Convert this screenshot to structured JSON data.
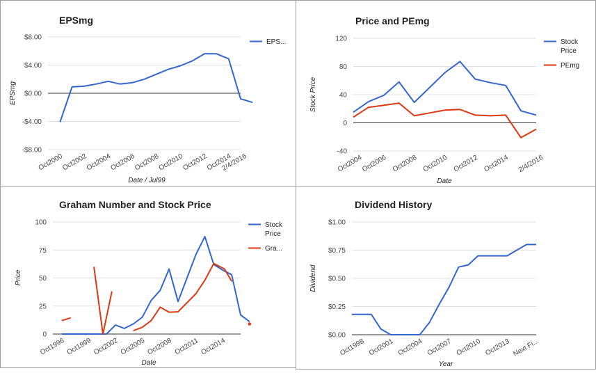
{
  "chart_data": [
    {
      "id": "eps",
      "type": "line",
      "title": "EPSmg",
      "xlabel": "Date / Jul99",
      "ylabel": "EPSmg",
      "ylim": [
        -8,
        8
      ],
      "yticks": [
        8,
        4,
        0,
        -4,
        -8
      ],
      "ytick_labels": [
        "$8.00",
        "$4.00",
        "$0.00",
        "-$4.00",
        "-$8.00"
      ],
      "xlim": [
        0,
        16
      ],
      "x_tick_labels": [
        {
          "x": 1,
          "label": "Oct2000"
        },
        {
          "x": 3,
          "label": "Oct2002"
        },
        {
          "x": 5,
          "label": "Oct2004"
        },
        {
          "x": 7,
          "label": "Oct2006"
        },
        {
          "x": 9,
          "label": "Oct2008"
        },
        {
          "x": 11,
          "label": "Oct2010"
        },
        {
          "x": 13,
          "label": "Oct2012"
        },
        {
          "x": 15,
          "label": "Oct2014"
        },
        {
          "x": 16.3,
          "label": "2/4/2016"
        }
      ],
      "legend_position": "right",
      "series": [
        {
          "name": "EPS...",
          "color": "#3366cc",
          "points": [
            [
              1,
              -4.1
            ],
            [
              2,
              0.9
            ],
            [
              3,
              1.0
            ],
            [
              4,
              1.3
            ],
            [
              5,
              1.7
            ],
            [
              6,
              1.3
            ],
            [
              7,
              1.5
            ],
            [
              8,
              2.0
            ],
            [
              9,
              2.7
            ],
            [
              10,
              3.4
            ],
            [
              11,
              3.9
            ],
            [
              12,
              4.6
            ],
            [
              13,
              5.6
            ],
            [
              14,
              5.6
            ],
            [
              15,
              4.9
            ],
            [
              16,
              -0.8
            ],
            [
              17,
              -1.3
            ]
          ]
        }
      ]
    },
    {
      "id": "pe",
      "type": "line",
      "title": "Price and PEmg",
      "xlabel": "Date",
      "ylabel": "Stock Price",
      "ylim": [
        -40,
        120
      ],
      "yticks": [
        120,
        80,
        40,
        0,
        -40
      ],
      "ytick_labels": [
        "120",
        "80",
        "40",
        "0",
        "-40"
      ],
      "xlim": [
        0,
        12
      ],
      "x_tick_labels": [
        {
          "x": 0.4,
          "label": "Oct2004"
        },
        {
          "x": 2,
          "label": "Oct2006"
        },
        {
          "x": 4,
          "label": "Oct2008"
        },
        {
          "x": 6,
          "label": "Oct2010"
        },
        {
          "x": 8,
          "label": "Oct2012"
        },
        {
          "x": 10,
          "label": "Oct2014"
        },
        {
          "x": 12.3,
          "label": "2/4/2016"
        }
      ],
      "legend_position": "right",
      "series": [
        {
          "name": "Stock Price",
          "color": "#3366cc",
          "points": [
            [
              0,
              15
            ],
            [
              1,
              30
            ],
            [
              2,
              39
            ],
            [
              3,
              58
            ],
            [
              4,
              29
            ],
            [
              5,
              50
            ],
            [
              6,
              71
            ],
            [
              7,
              87
            ],
            [
              8,
              62
            ],
            [
              9,
              57
            ],
            [
              10,
              53
            ],
            [
              11,
              17
            ],
            [
              12,
              11
            ]
          ]
        },
        {
          "name": "PEmg",
          "color": "#dc3912",
          "points": [
            [
              0,
              8
            ],
            [
              1,
              22
            ],
            [
              2,
              25
            ],
            [
              3,
              28
            ],
            [
              4,
              10
            ],
            [
              5,
              14
            ],
            [
              6,
              18
            ],
            [
              7,
              19
            ],
            [
              8,
              11
            ],
            [
              9,
              10
            ],
            [
              10,
              11
            ],
            [
              11,
              -21
            ],
            [
              12,
              -9
            ]
          ]
        }
      ]
    },
    {
      "id": "graham",
      "type": "line",
      "title": "Graham Number and Stock Price",
      "xlabel": "Date",
      "ylabel": "Price",
      "ylim": [
        0,
        100
      ],
      "yticks": [
        100,
        75,
        50,
        25,
        0
      ],
      "ytick_labels": [
        "100",
        "75",
        "50",
        "25",
        "0"
      ],
      "xlim": [
        0,
        21
      ],
      "x_tick_labels": [
        {
          "x": 1,
          "label": "Oct1996"
        },
        {
          "x": 4,
          "label": "Oct1999"
        },
        {
          "x": 7,
          "label": "Oct2002"
        },
        {
          "x": 10,
          "label": "Oct2005"
        },
        {
          "x": 13,
          "label": "Oct2008"
        },
        {
          "x": 16,
          "label": "Oct2011"
        },
        {
          "x": 19,
          "label": "Oct2014"
        }
      ],
      "legend_position": "right",
      "series": [
        {
          "name": "Stock Price",
          "color": "#3366cc",
          "segments": [
            [
              [
                1,
                0
              ],
              [
                2,
                0
              ],
              [
                3,
                0
              ],
              [
                4,
                0
              ],
              [
                5,
                0
              ],
              [
                6,
                0
              ],
              [
                7,
                8
              ],
              [
                8,
                5
              ],
              [
                9,
                9
              ],
              [
                10,
                15
              ],
              [
                11,
                30
              ],
              [
                12,
                39
              ],
              [
                13,
                58
              ],
              [
                14,
                29
              ],
              [
                15,
                50
              ],
              [
                16,
                71
              ],
              [
                17,
                87
              ],
              [
                18,
                62
              ],
              [
                19,
                57
              ],
              [
                20,
                53
              ],
              [
                21,
                17
              ],
              [
                22,
                11
              ]
            ]
          ]
        },
        {
          "name": "Gra...",
          "color": "#dc3912",
          "segments": [
            [
              [
                1,
                12
              ],
              [
                2,
                14.5
              ]
            ],
            [
              [
                4.6,
                60
              ],
              [
                5.6,
                0
              ],
              [
                6.6,
                38
              ]
            ],
            [
              [
                9,
                3
              ],
              [
                10,
                6
              ],
              [
                11,
                12
              ],
              [
                12,
                24
              ],
              [
                13,
                19.5
              ],
              [
                14,
                19.8
              ],
              [
                16,
                36
              ],
              [
                17,
                48
              ],
              [
                18,
                63
              ],
              [
                19.2,
                58
              ],
              [
                20,
                47
              ]
            ],
            [
              [
                22,
                9
              ]
            ]
          ]
        }
      ]
    },
    {
      "id": "dividend",
      "type": "line",
      "title": "Dividend History",
      "xlabel": "Year",
      "ylabel": "Dividend",
      "ylim": [
        0,
        1
      ],
      "yticks": [
        1,
        0.75,
        0.5,
        0.25,
        0
      ],
      "ytick_labels": [
        "$1.00",
        "$0.75",
        "$0.50",
        "$0.25",
        "$0.00"
      ],
      "xlim": [
        0,
        19
      ],
      "x_tick_labels": [
        {
          "x": 1,
          "label": "Oct1998"
        },
        {
          "x": 4,
          "label": "Oct2001"
        },
        {
          "x": 7,
          "label": "Oct2004"
        },
        {
          "x": 10,
          "label": "Oct2007"
        },
        {
          "x": 13,
          "label": "Oct2010"
        },
        {
          "x": 16,
          "label": "Oct2013"
        },
        {
          "x": 19,
          "label": "Next Fi..."
        }
      ],
      "series": [
        {
          "name": "Dividend",
          "color": "#3366cc",
          "points": [
            [
              0,
              0.18
            ],
            [
              1,
              0.18
            ],
            [
              2,
              0.18
            ],
            [
              3,
              0.05
            ],
            [
              4,
              0
            ],
            [
              5,
              0
            ],
            [
              6,
              0
            ],
            [
              7,
              0
            ],
            [
              8,
              0.11
            ],
            [
              9,
              0.27
            ],
            [
              10,
              0.42
            ],
            [
              11,
              0.6
            ],
            [
              12,
              0.62
            ],
            [
              13,
              0.7
            ],
            [
              14,
              0.7
            ],
            [
              15,
              0.7
            ],
            [
              16,
              0.7
            ],
            [
              17,
              0.75
            ],
            [
              18,
              0.8
            ],
            [
              19,
              0.8
            ]
          ]
        }
      ]
    }
  ]
}
